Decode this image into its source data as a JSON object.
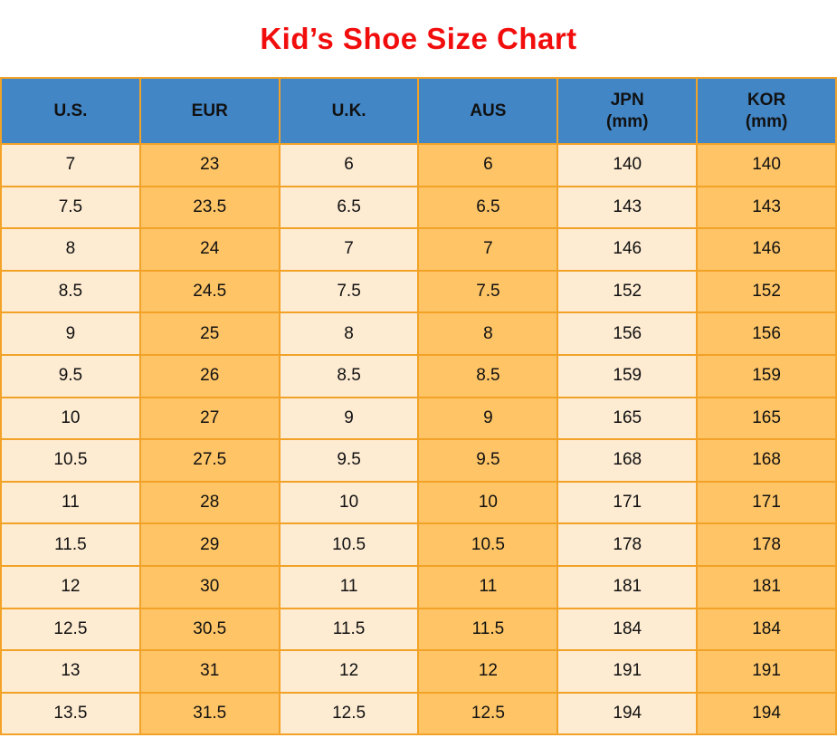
{
  "title": "Kid’s Shoe Size Chart",
  "colors": {
    "header_bg": "#4286c6",
    "border": "#f2a227",
    "col_light": "#fdebd2",
    "col_orange": "#fec466",
    "title_color": "#f20d0d",
    "text_color": "#111111",
    "page_bg": "#ffffff"
  },
  "table": {
    "columns": [
      {
        "label": "U.S.",
        "sub": ""
      },
      {
        "label": "EUR",
        "sub": ""
      },
      {
        "label": "U.K.",
        "sub": ""
      },
      {
        "label": "AUS",
        "sub": ""
      },
      {
        "label": "JPN",
        "sub": "(mm)"
      },
      {
        "label": "KOR",
        "sub": "(mm)"
      }
    ],
    "rows": [
      [
        "7",
        "23",
        "6",
        "6",
        "140",
        "140"
      ],
      [
        "7.5",
        "23.5",
        "6.5",
        "6.5",
        "143",
        "143"
      ],
      [
        "8",
        "24",
        "7",
        "7",
        "146",
        "146"
      ],
      [
        "8.5",
        "24.5",
        "7.5",
        "7.5",
        "152",
        "152"
      ],
      [
        "9",
        "25",
        "8",
        "8",
        "156",
        "156"
      ],
      [
        "9.5",
        "26",
        "8.5",
        "8.5",
        "159",
        "159"
      ],
      [
        "10",
        "27",
        "9",
        "9",
        "165",
        "165"
      ],
      [
        "10.5",
        "27.5",
        "9.5",
        "9.5",
        "168",
        "168"
      ],
      [
        "11",
        "28",
        "10",
        "10",
        "171",
        "171"
      ],
      [
        "11.5",
        "29",
        "10.5",
        "10.5",
        "178",
        "178"
      ],
      [
        "12",
        "30",
        "11",
        "11",
        "181",
        "181"
      ],
      [
        "12.5",
        "30.5",
        "11.5",
        "11.5",
        "184",
        "184"
      ],
      [
        "13",
        "31",
        "12",
        "12",
        "191",
        "191"
      ],
      [
        "13.5",
        "31.5",
        "12.5",
        "12.5",
        "194",
        "194"
      ]
    ]
  },
  "chart_data": {
    "type": "table",
    "title": "Kid’s Shoe Size Chart",
    "columns": [
      "U.S.",
      "EUR",
      "U.K.",
      "AUS",
      "JPN (mm)",
      "KOR (mm)"
    ],
    "rows": [
      [
        7,
        23,
        6,
        6,
        140,
        140
      ],
      [
        7.5,
        23.5,
        6.5,
        6.5,
        143,
        143
      ],
      [
        8,
        24,
        7,
        7,
        146,
        146
      ],
      [
        8.5,
        24.5,
        7.5,
        7.5,
        152,
        152
      ],
      [
        9,
        25,
        8,
        8,
        156,
        156
      ],
      [
        9.5,
        26,
        8.5,
        8.5,
        159,
        159
      ],
      [
        10,
        27,
        9,
        9,
        165,
        165
      ],
      [
        10.5,
        27.5,
        9.5,
        9.5,
        168,
        168
      ],
      [
        11,
        28,
        10,
        10,
        171,
        171
      ],
      [
        11.5,
        29,
        10.5,
        10.5,
        178,
        178
      ],
      [
        12,
        30,
        11,
        11,
        181,
        181
      ],
      [
        12.5,
        30.5,
        11.5,
        11.5,
        184,
        184
      ],
      [
        13,
        31,
        12,
        12,
        191,
        191
      ],
      [
        13.5,
        31.5,
        12.5,
        12.5,
        194,
        194
      ]
    ]
  }
}
